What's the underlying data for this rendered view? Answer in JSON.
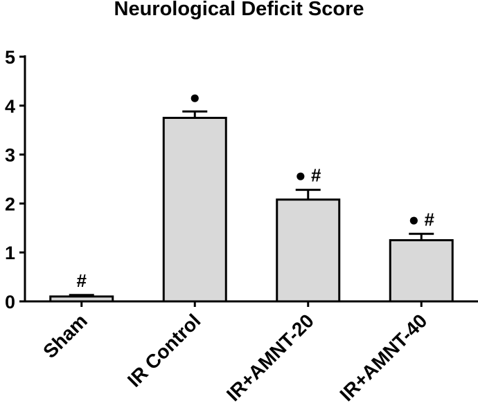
{
  "chart_data": {
    "type": "bar",
    "title": "Neurological Deficit Score",
    "xlabel": "",
    "ylabel": "",
    "categories": [
      "Sham",
      "IR Control",
      "IR+AMNT-20",
      "IR+AMNT-40"
    ],
    "values": [
      0.1,
      3.75,
      2.08,
      1.25
    ],
    "errors": [
      0.03,
      0.13,
      0.2,
      0.13
    ],
    "annotations": [
      "#",
      "●",
      "● #",
      "● #"
    ],
    "ylim": [
      0,
      5
    ],
    "yticks": [
      "0",
      "1",
      "2",
      "3",
      "4",
      "5"
    ],
    "bar_color": "#d9d9d9",
    "grid": false,
    "legend": "none"
  }
}
